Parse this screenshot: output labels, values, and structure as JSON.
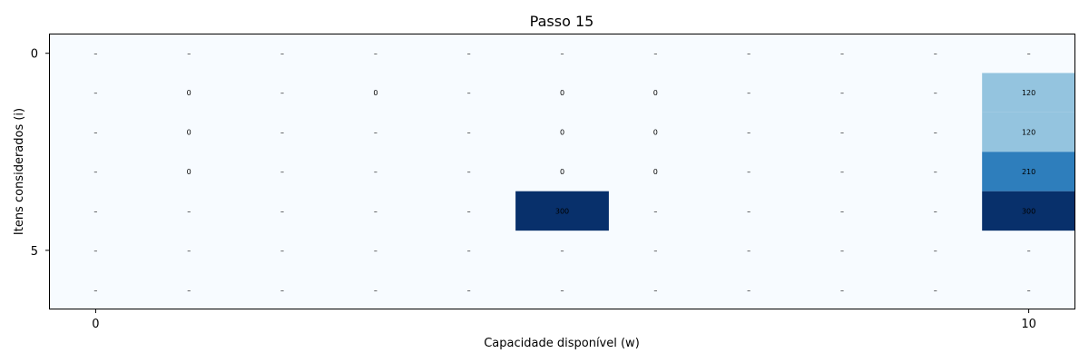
{
  "chart_data": {
    "type": "heatmap",
    "title": "Passo 15",
    "xlabel": "Capacidade disponível (w)",
    "ylabel": "Itens considerados (i)",
    "x_ticks": [
      "0",
      "10"
    ],
    "y_ticks": [
      "0",
      "5"
    ],
    "n_rows": 7,
    "n_cols": 11,
    "colormap": "Blues",
    "vmin": 0,
    "vmax": 300,
    "empty_label": "–",
    "grid": false,
    "cells": [
      [
        null,
        null,
        null,
        null,
        null,
        null,
        null,
        null,
        null,
        null,
        null
      ],
      [
        null,
        0,
        null,
        0,
        null,
        0,
        0,
        null,
        null,
        null,
        120
      ],
      [
        null,
        0,
        null,
        null,
        null,
        0,
        0,
        null,
        null,
        null,
        120
      ],
      [
        null,
        0,
        null,
        null,
        null,
        0,
        0,
        null,
        null,
        null,
        210
      ],
      [
        null,
        null,
        null,
        null,
        null,
        300,
        null,
        null,
        null,
        null,
        300
      ],
      [
        null,
        null,
        null,
        null,
        null,
        null,
        null,
        null,
        null,
        null,
        null
      ],
      [
        null,
        null,
        null,
        null,
        null,
        null,
        null,
        null,
        null,
        null,
        null
      ]
    ]
  }
}
